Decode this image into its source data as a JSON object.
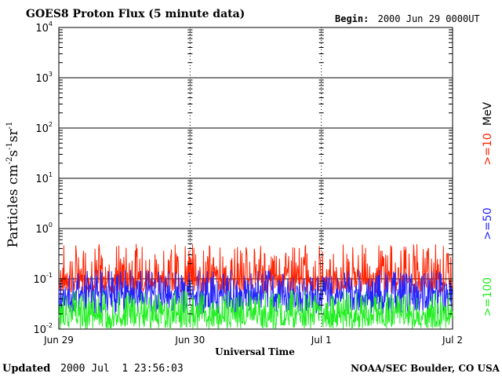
{
  "chart_data": {
    "type": "line",
    "title": "GOES8 Proton Flux (5 minute data)",
    "begin_label": "Begin:",
    "begin_value": "2000 Jun 29 0000UT",
    "xlabel": "Universal Time",
    "ylabel_base": "Particles cm",
    "ylabel_exp1": "-2",
    "ylabel_mid1": "s",
    "ylabel_exp2": "-1",
    "ylabel_mid2": "sr",
    "ylabel_exp3": "-1",
    "y_scale": "log",
    "ylim": [
      0.01,
      10000
    ],
    "y_ticks": [
      {
        "base": "10",
        "exp": "-2"
      },
      {
        "base": "10",
        "exp": "-1"
      },
      {
        "base": "10",
        "exp": "0"
      },
      {
        "base": "10",
        "exp": "1"
      },
      {
        "base": "10",
        "exp": "2"
      },
      {
        "base": "10",
        "exp": "3"
      },
      {
        "base": "10",
        "exp": "4"
      }
    ],
    "x_ticks": [
      "Jun 29",
      "Jun 30",
      "Jul 1",
      "Jul 2"
    ],
    "x_range_days": [
      0,
      3
    ],
    "grid": true,
    "legend_unit": "MeV",
    "series": [
      {
        "name": ">=10",
        "color": "#ff2200",
        "min": 0.05,
        "max": 0.5,
        "typical": 0.1
      },
      {
        "name": ">=50",
        "color": "#2222ff",
        "min": 0.02,
        "max": 0.15,
        "typical": 0.05
      },
      {
        "name": ">=100",
        "color": "#22ee22",
        "min": 0.01,
        "max": 0.06,
        "typical": 0.02
      }
    ]
  },
  "footer": {
    "updated_label": "Updated",
    "updated_value": "2000 Jul  1 23:56:03",
    "source": "NOAA/SEC Boulder, CO USA"
  }
}
